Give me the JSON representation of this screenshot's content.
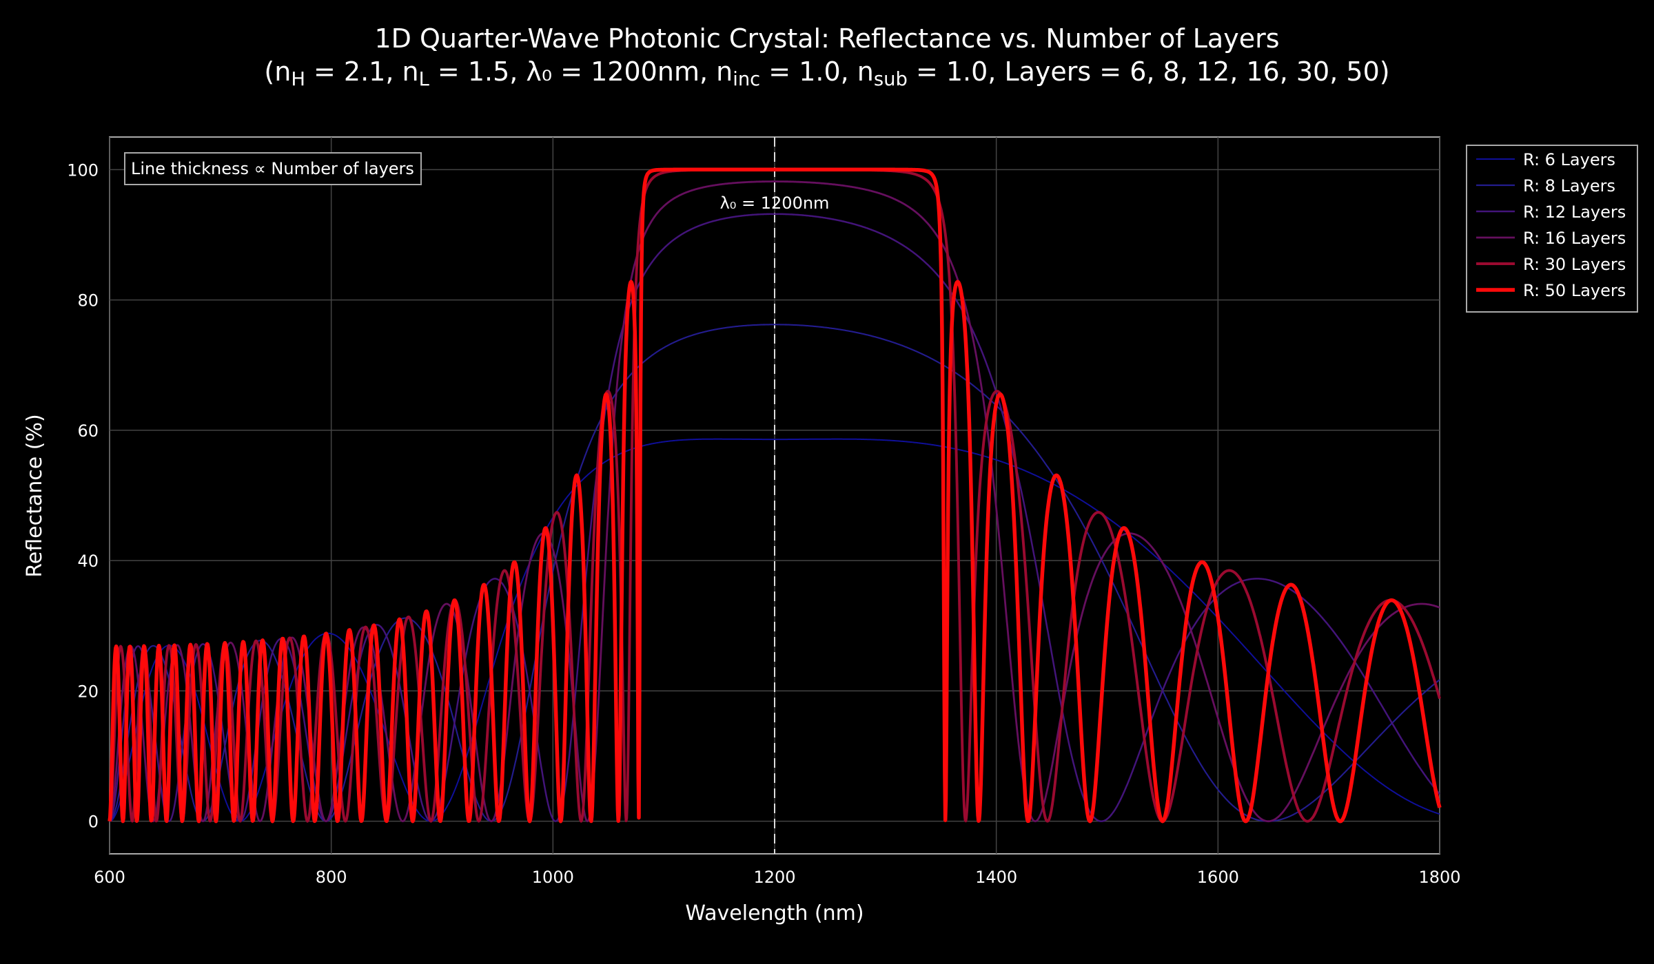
{
  "chart_data": {
    "type": "line",
    "title": "1D Quarter-Wave Photonic Crystal: Reflectance vs. Number of Layers",
    "subtitle_parts": {
      "nH_label": "n",
      "nH_sub": "H",
      "nH_value": " = 2.1, ",
      "nL_label": "n",
      "nL_sub": "L",
      "nL_value": " = 1.5, λ₀ = 1200nm, ",
      "ninc_label": "n",
      "ninc_sub": "inc",
      "ninc_value": " = 1.0, ",
      "nsub_label": "n",
      "nsub_sub": "sub",
      "nsub_value": " = 1.0, Layers = 6, 8, 12, 16, 30, 50"
    },
    "xlabel": "Wavelength (nm)",
    "ylabel": "Reflectance (%)",
    "xlim": [
      600,
      1800
    ],
    "ylim": [
      -5,
      105
    ],
    "x_ticks": [
      600,
      800,
      1000,
      1200,
      1400,
      1600,
      1800
    ],
    "y_ticks": [
      0,
      20,
      40,
      60,
      80,
      100
    ],
    "grid": true,
    "legend_position": "right-top outside",
    "annotation_box": "Line thickness ∝ Number of layers",
    "reference_line": {
      "x": 1200,
      "label": "λ₀ = 1200nm",
      "style": "dashed"
    },
    "model": {
      "nH": 2.1,
      "nL": 1.5,
      "lambda0_nm": 1200,
      "n_inc": 1.0,
      "n_sub": 1.0
    },
    "series": [
      {
        "name": "R: 6 Layers",
        "layers": 6,
        "color": "#0f0f9a"
      },
      {
        "name": "R: 8 Layers",
        "layers": 8,
        "color": "#231c8e"
      },
      {
        "name": "R: 12 Layers",
        "layers": 12,
        "color": "#43147a"
      },
      {
        "name": "R: 16 Layers",
        "layers": 16,
        "color": "#650f5e"
      },
      {
        "name": "R: 30 Layers",
        "layers": 30,
        "color": "#9a0a30"
      },
      {
        "name": "R: 50 Layers",
        "layers": 50,
        "color": "#ff0a0a"
      }
    ]
  }
}
